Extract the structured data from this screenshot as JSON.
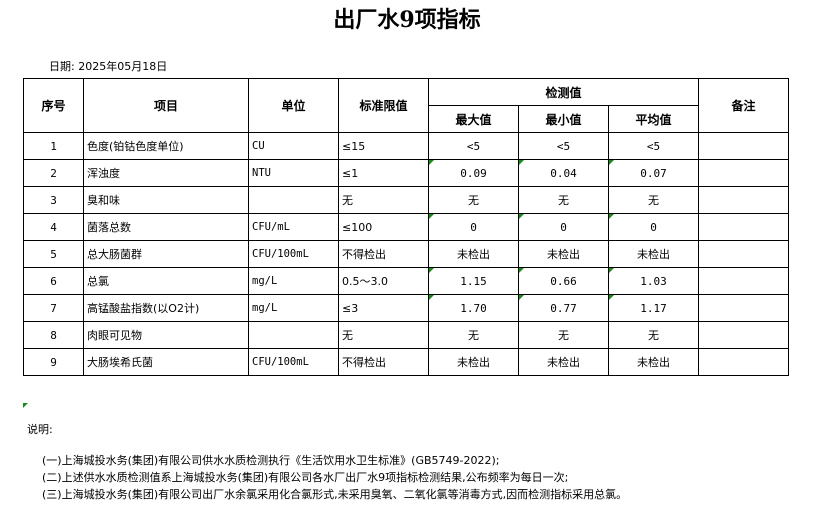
{
  "title": "出厂水9项指标",
  "date_label": "日期: 2025年05月18日",
  "headers": {
    "index": "序号",
    "item": "项目",
    "unit": "单位",
    "limit": "标准限值",
    "measured": "检测值",
    "max": "最大值",
    "min": "最小值",
    "avg": "平均值",
    "remark": "备注"
  },
  "rows": [
    {
      "index": "1",
      "item": "色度(铂钴色度单位)",
      "unit": "CU",
      "limit": "≤15",
      "max": "<5",
      "min": "<5",
      "avg": "<5",
      "remark": "",
      "flag": false
    },
    {
      "index": "2",
      "item": "浑浊度",
      "unit": "NTU",
      "limit": "≤1",
      "max": "0.09",
      "min": "0.04",
      "avg": "0.07",
      "remark": "",
      "flag": true
    },
    {
      "index": "3",
      "item": "臭和味",
      "unit": "",
      "limit": "无",
      "max": "无",
      "min": "无",
      "avg": "无",
      "remark": "",
      "flag": false
    },
    {
      "index": "4",
      "item": "菌落总数",
      "unit": "CFU/mL",
      "limit": "≤100",
      "max": "0",
      "min": "0",
      "avg": "0",
      "remark": "",
      "flag": true
    },
    {
      "index": "5",
      "item": "总大肠菌群",
      "unit": "CFU/100mL",
      "limit": "不得检出",
      "max": "未检出",
      "min": "未检出",
      "avg": "未检出",
      "remark": "",
      "flag": false
    },
    {
      "index": "6",
      "item": "总氯",
      "unit": "mg/L",
      "limit": "0.5～3.0",
      "max": "1.15",
      "min": "0.66",
      "avg": "1.03",
      "remark": "",
      "flag": true
    },
    {
      "index": "7",
      "item": "高锰酸盐指数(以O2计)",
      "unit": "mg/L",
      "limit": "≤3",
      "max": "1.70",
      "min": "0.77",
      "avg": "1.17",
      "remark": "",
      "flag": true
    },
    {
      "index": "8",
      "item": "肉眼可见物",
      "unit": "",
      "limit": "无",
      "max": "无",
      "min": "无",
      "avg": "无",
      "remark": "",
      "flag": false
    },
    {
      "index": "9",
      "item": "大肠埃希氏菌",
      "unit": "CFU/100mL",
      "limit": "不得检出",
      "max": "未检出",
      "min": "未检出",
      "avg": "未检出",
      "remark": "",
      "flag": false
    }
  ],
  "notes": {
    "title": "说明:",
    "items": [
      "(一)上海城投水务(集团)有限公司供水水质检测执行《生活饮用水卫生标准》(GB5749-2022);",
      "(二)上述供水水质检测值系上海城投水务(集团)有限公司各水厂出厂水9项指标检测结果,公布频率为每日一次;",
      "(三)上海城投水务(集团)有限公司出厂水余氯采用化合氯形式,未采用臭氧、二氧化氯等消毒方式,因而检测指标采用总氯。"
    ]
  },
  "colors": {
    "flag_triangle": "#1a8a1a"
  }
}
